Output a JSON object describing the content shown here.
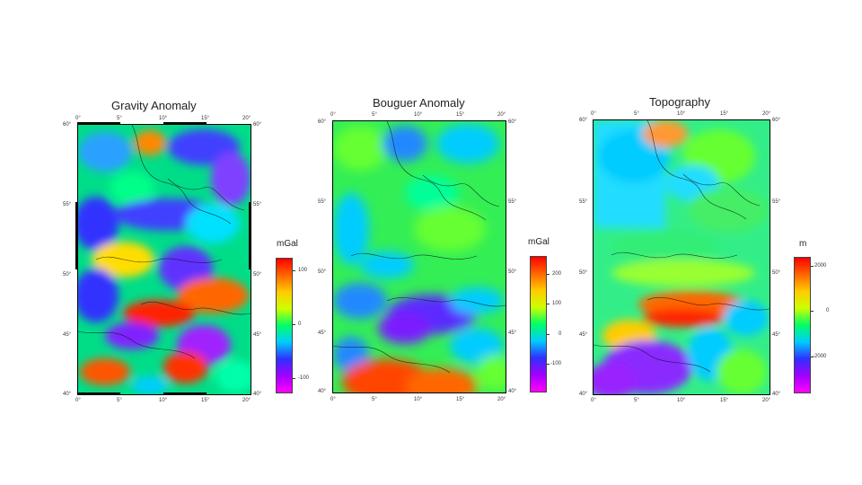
{
  "panels": [
    {
      "title": "Gravity Anomaly",
      "unit": "mGal",
      "lon_ticks": [
        "0°",
        "5°",
        "10°",
        "15°",
        "20°"
      ],
      "lat_ticks": [
        "60°",
        "55°",
        "50°",
        "45°",
        "40°"
      ],
      "colorbar_ticks": [
        "100",
        "0",
        "-100"
      ],
      "colorbar_colors": [
        "#ff00ff",
        "#a000ff",
        "#3030ff",
        "#00ccff",
        "#00ff66",
        "#ccff00",
        "#ffcc00",
        "#ff6600",
        "#ff0000"
      ]
    },
    {
      "title": "Bouguer Anomaly",
      "unit": "mGal",
      "lon_ticks": [
        "0°",
        "5°",
        "10°",
        "15°",
        "20°"
      ],
      "lat_ticks": [
        "60°",
        "55°",
        "50°",
        "45°",
        "40°"
      ],
      "colorbar_ticks": [
        "200",
        "100",
        "0",
        "-100"
      ],
      "colorbar_colors": [
        "#ff00ff",
        "#a000ff",
        "#3030ff",
        "#00ccff",
        "#00ff66",
        "#ccff00",
        "#ffcc00",
        "#ff6600",
        "#ff0000"
      ]
    },
    {
      "title": "Topography",
      "unit": "m",
      "lon_ticks": [
        "0°",
        "5°",
        "10°",
        "15°",
        "20°"
      ],
      "lat_ticks": [
        "60°",
        "55°",
        "50°",
        "45°",
        "40°"
      ],
      "colorbar_ticks": [
        "2000",
        "0",
        "-2000"
      ],
      "colorbar_colors": [
        "#ff00ff",
        "#a000ff",
        "#3030ff",
        "#00ccff",
        "#00ff66",
        "#ccff00",
        "#ffcc00",
        "#ff6600",
        "#ff0000"
      ]
    }
  ]
}
